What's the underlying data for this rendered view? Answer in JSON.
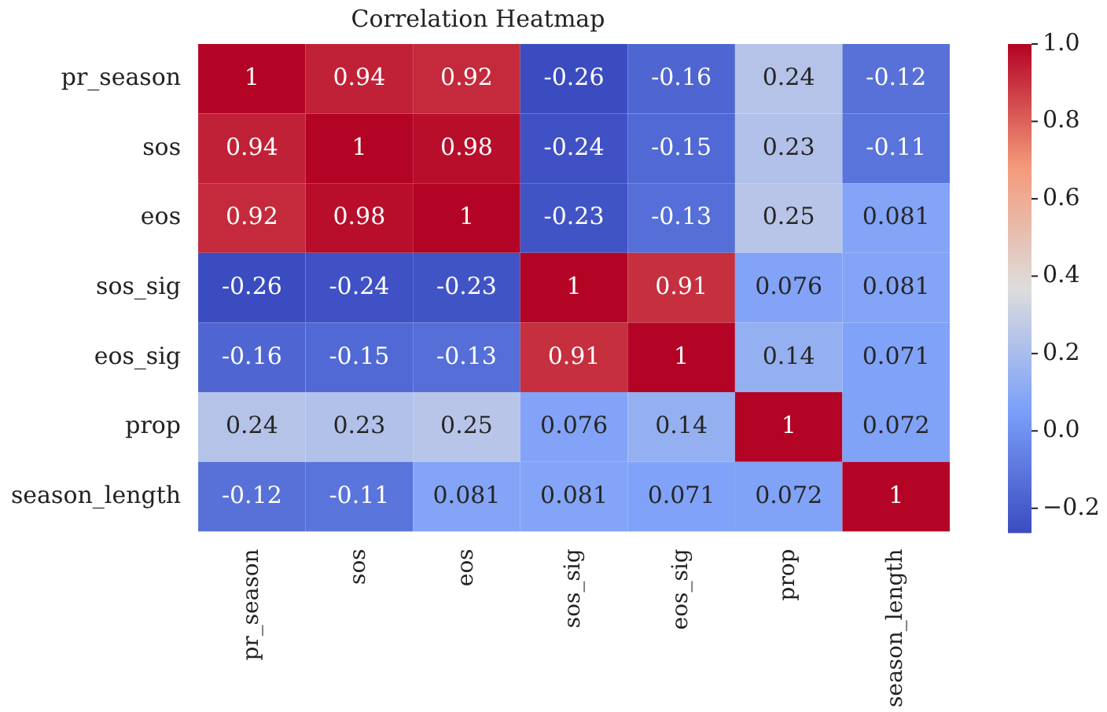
{
  "chart_data": {
    "type": "heatmap",
    "title": "Correlation Heatmap",
    "categories": [
      "pr_season",
      "sos",
      "eos",
      "sos_sig",
      "eos_sig",
      "prop",
      "season_length"
    ],
    "y_categories": [
      "pr_season",
      "sos",
      "eos",
      "sos_sig",
      "eos_sig",
      "prop",
      "season_length"
    ],
    "cells": [
      [
        1,
        0.94,
        0.92,
        -0.26,
        -0.16,
        0.24,
        -0.12
      ],
      [
        0.94,
        1,
        0.98,
        -0.24,
        -0.15,
        0.23,
        -0.11
      ],
      [
        0.92,
        0.98,
        1,
        -0.23,
        -0.13,
        0.25,
        0.081
      ],
      [
        -0.26,
        -0.24,
        -0.23,
        1,
        0.91,
        0.076,
        0.081
      ],
      [
        -0.16,
        -0.15,
        -0.13,
        0.91,
        1,
        0.14,
        0.071
      ],
      [
        0.24,
        0.23,
        0.25,
        0.076,
        0.14,
        1,
        0.072
      ],
      [
        -0.12,
        -0.11,
        0.081,
        0.081,
        0.071,
        0.072,
        1
      ]
    ],
    "data_labels": true,
    "clim": [
      -0.26,
      1
    ],
    "cticks": [
      {
        "value": -0.2,
        "label": "−0.2"
      },
      {
        "value": 0,
        "label": "0.0"
      },
      {
        "value": 0.2,
        "label": "0.2"
      },
      {
        "value": 0.4,
        "label": "0.4"
      },
      {
        "value": 0.6,
        "label": "0.6"
      },
      {
        "value": 0.8,
        "label": "0.8"
      },
      {
        "value": 1,
        "label": "1.0"
      }
    ]
  }
}
